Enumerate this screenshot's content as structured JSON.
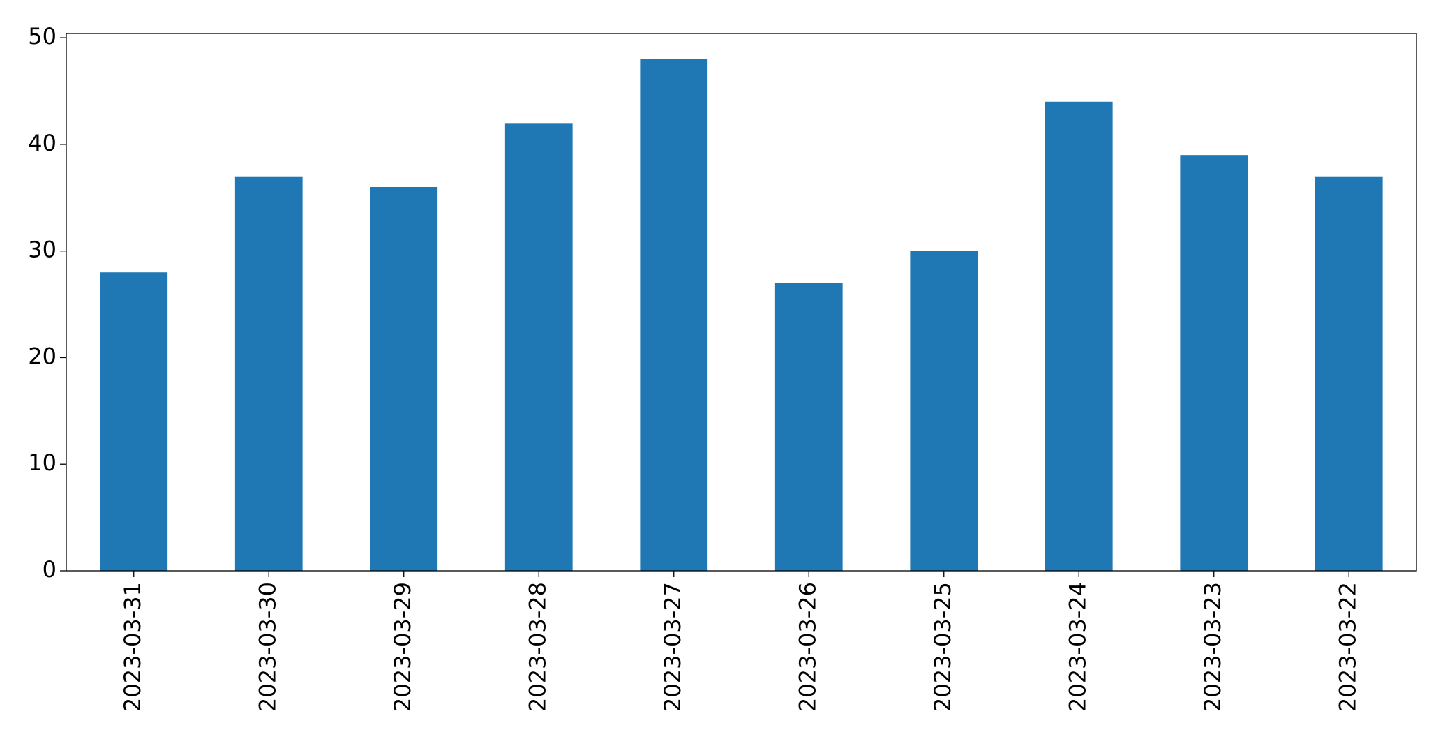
{
  "chart_data": {
    "type": "bar",
    "categories": [
      "2023-03-31",
      "2023-03-30",
      "2023-03-29",
      "2023-03-28",
      "2023-03-27",
      "2023-03-26",
      "2023-03-25",
      "2023-03-24",
      "2023-03-23",
      "2023-03-22"
    ],
    "values": [
      28,
      37,
      36,
      42,
      48,
      27,
      30,
      44,
      39,
      37
    ],
    "color": "#1f77b4",
    "ylim": [
      0,
      50.4
    ],
    "yticks": [
      0,
      10,
      20,
      30,
      40,
      50
    ],
    "grid": false
  }
}
